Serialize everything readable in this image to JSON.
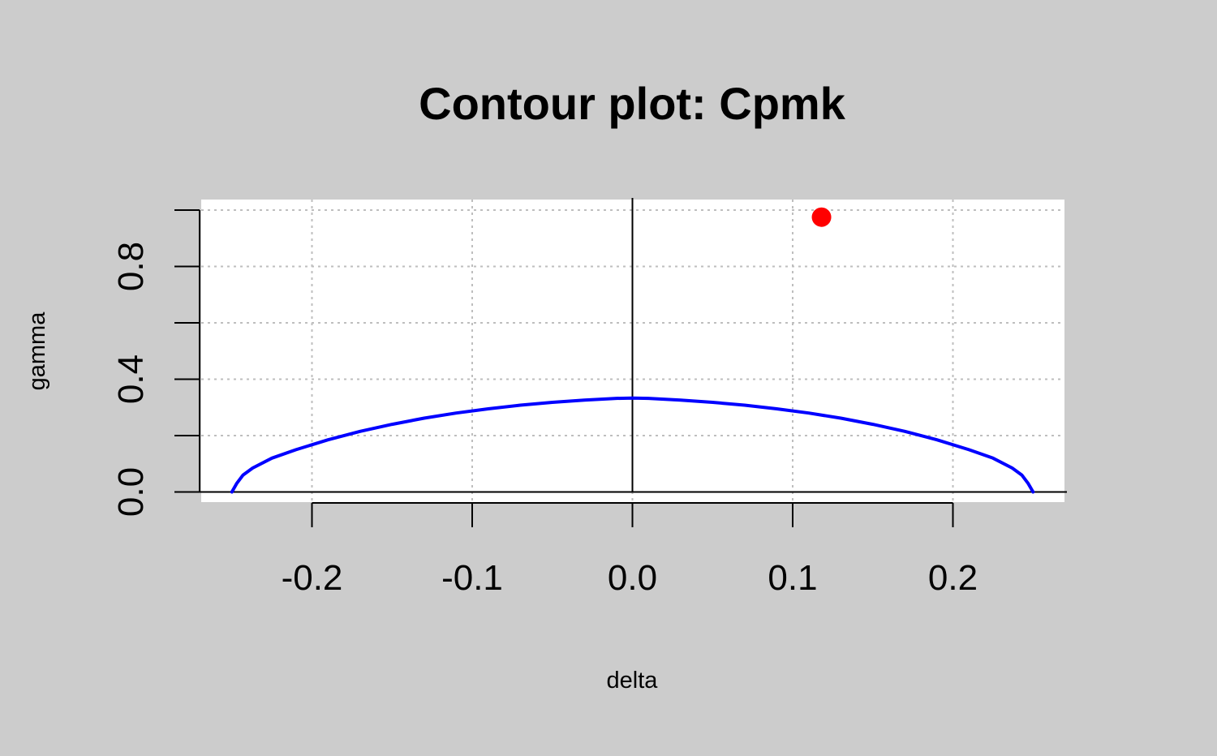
{
  "chart_data": {
    "type": "line",
    "title": "Contour plot: Cpmk",
    "xlabel": "delta",
    "ylabel": "gamma",
    "xlim": [
      -0.27,
      0.27
    ],
    "ylim": [
      -0.03,
      1.0
    ],
    "x_ticks": [
      -0.2,
      -0.1,
      0.0,
      0.1,
      0.2
    ],
    "x_tick_labels": [
      "-0.2",
      "-0.1",
      "0.0",
      "0.1",
      "0.2"
    ],
    "y_ticks": [
      0.0,
      0.2,
      0.4,
      0.6,
      0.8,
      1.0
    ],
    "y_tick_labels": [
      "0.0",
      "",
      "0.4",
      "",
      "0.8",
      ""
    ],
    "grid": true,
    "reference_lines": {
      "x": 0,
      "y": 0
    },
    "colors": {
      "background": "#cccccc",
      "plot_area": "#ffffff",
      "contour": "#0000ff",
      "point": "#ff0000",
      "grid": "#bebebe"
    },
    "series": [
      {
        "values": [
          [
            -0.25,
            0.0
          ],
          [
            -0.247,
            0.03
          ],
          [
            -0.243,
            0.06
          ],
          [
            -0.237,
            0.085
          ],
          [
            -0.225,
            0.12
          ],
          [
            -0.21,
            0.15
          ],
          [
            -0.19,
            0.185
          ],
          [
            -0.17,
            0.215
          ],
          [
            -0.15,
            0.24
          ],
          [
            -0.13,
            0.262
          ],
          [
            -0.11,
            0.28
          ],
          [
            -0.09,
            0.295
          ],
          [
            -0.07,
            0.308
          ],
          [
            -0.05,
            0.318
          ],
          [
            -0.03,
            0.326
          ],
          [
            -0.01,
            0.332
          ],
          [
            0.0,
            0.333
          ],
          [
            0.01,
            0.332
          ],
          [
            0.03,
            0.326
          ],
          [
            0.05,
            0.318
          ],
          [
            0.07,
            0.308
          ],
          [
            0.09,
            0.295
          ],
          [
            0.11,
            0.28
          ],
          [
            0.13,
            0.262
          ],
          [
            0.15,
            0.24
          ],
          [
            0.17,
            0.215
          ],
          [
            0.19,
            0.185
          ],
          [
            0.21,
            0.15
          ],
          [
            0.225,
            0.12
          ],
          [
            0.237,
            0.085
          ],
          [
            0.243,
            0.06
          ],
          [
            0.247,
            0.03
          ],
          [
            0.25,
            0.0
          ]
        ]
      }
    ],
    "points": [
      {
        "x": 0.118,
        "y": 0.975
      }
    ]
  }
}
